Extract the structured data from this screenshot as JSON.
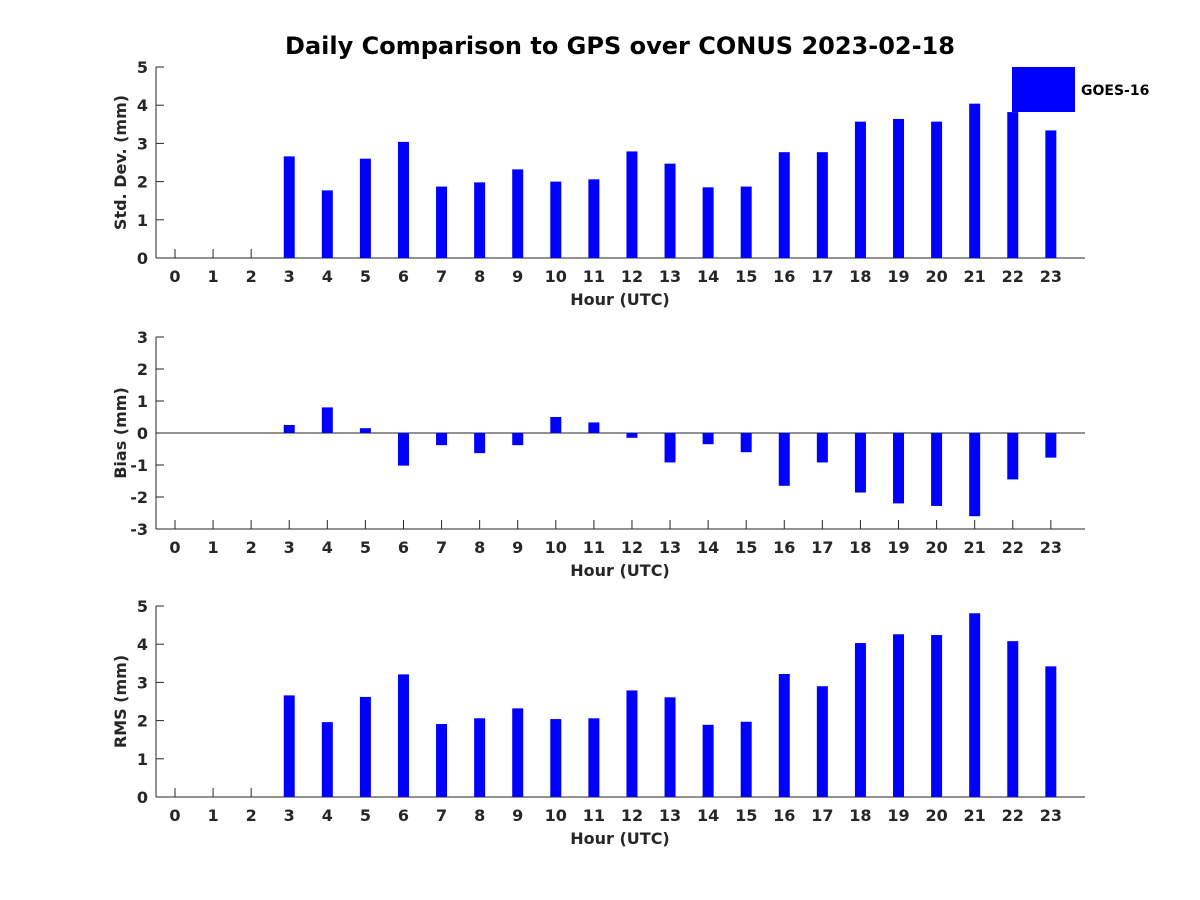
{
  "title": "Daily Comparison to GPS over CONUS 2023-02-18",
  "legend": {
    "label": "GOES-16",
    "color": "#0000ff",
    "position": "top-right"
  },
  "chart_data": [
    {
      "type": "bar",
      "name": "std-dev",
      "ylabel": "Std. Dev. (mm)",
      "xlabel": "Hour (UTC)",
      "categories": [
        "0",
        "1",
        "2",
        "3",
        "4",
        "5",
        "6",
        "7",
        "8",
        "9",
        "10",
        "11",
        "12",
        "13",
        "14",
        "15",
        "16",
        "17",
        "18",
        "19",
        "20",
        "21",
        "22",
        "23"
      ],
      "values": [
        null,
        null,
        null,
        2.66,
        1.77,
        2.6,
        3.04,
        1.87,
        1.98,
        2.32,
        2.0,
        2.06,
        2.79,
        2.47,
        1.85,
        1.87,
        2.77,
        2.77,
        3.57,
        3.64,
        3.57,
        4.04,
        3.82,
        3.34
      ],
      "ylim": [
        0,
        5
      ],
      "yticks": [
        0,
        1,
        2,
        3,
        4,
        5
      ],
      "color": "#0000ff"
    },
    {
      "type": "bar",
      "name": "bias",
      "ylabel": "Bias (mm)",
      "xlabel": "Hour (UTC)",
      "categories": [
        "0",
        "1",
        "2",
        "3",
        "4",
        "5",
        "6",
        "7",
        "8",
        "9",
        "10",
        "11",
        "12",
        "13",
        "14",
        "15",
        "16",
        "17",
        "18",
        "19",
        "20",
        "21",
        "22",
        "23"
      ],
      "values": [
        null,
        null,
        null,
        0.25,
        0.8,
        0.15,
        -1.02,
        -0.38,
        -0.63,
        -0.38,
        0.5,
        0.33,
        -0.15,
        -0.92,
        -0.35,
        -0.6,
        -1.65,
        -0.92,
        -1.86,
        -2.2,
        -2.28,
        -2.6,
        -1.45,
        -0.77
      ],
      "ylim": [
        -3,
        3
      ],
      "yticks": [
        -3,
        -2,
        -1,
        0,
        1,
        2,
        3
      ],
      "color": "#0000ff"
    },
    {
      "type": "bar",
      "name": "rms",
      "ylabel": "RMS (mm)",
      "xlabel": "Hour (UTC)",
      "categories": [
        "0",
        "1",
        "2",
        "3",
        "4",
        "5",
        "6",
        "7",
        "8",
        "9",
        "10",
        "11",
        "12",
        "13",
        "14",
        "15",
        "16",
        "17",
        "18",
        "19",
        "20",
        "21",
        "22",
        "23"
      ],
      "values": [
        null,
        null,
        null,
        2.66,
        1.96,
        2.62,
        3.21,
        1.91,
        2.06,
        2.32,
        2.04,
        2.06,
        2.79,
        2.61,
        1.89,
        1.97,
        3.22,
        2.9,
        4.03,
        4.26,
        4.24,
        4.81,
        4.08,
        3.42
      ],
      "ylim": [
        0,
        5
      ],
      "yticks": [
        0,
        1,
        2,
        3,
        4,
        5
      ],
      "color": "#0000ff"
    }
  ]
}
